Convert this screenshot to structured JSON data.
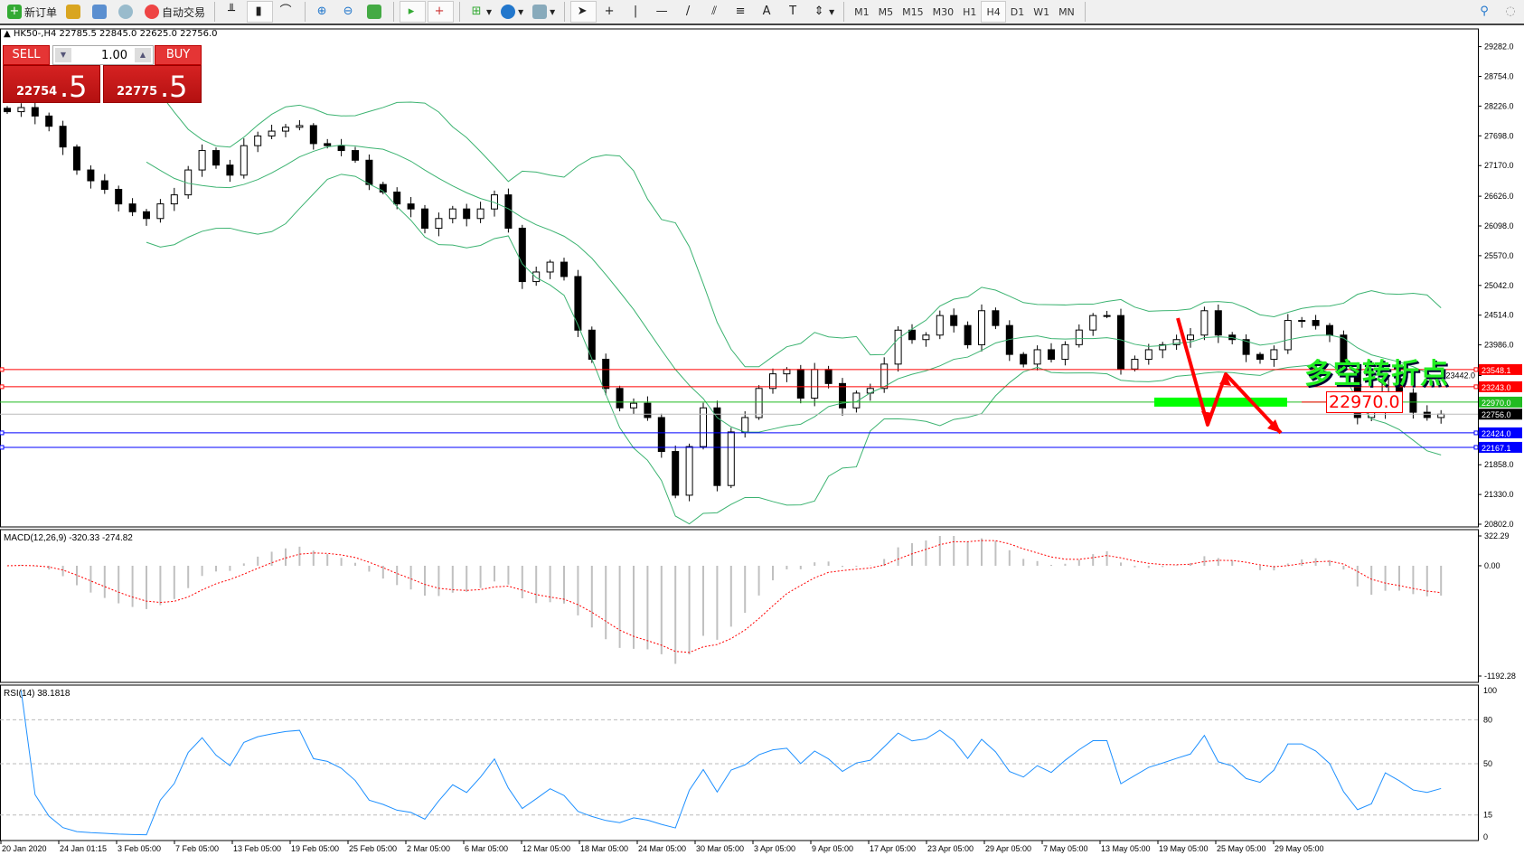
{
  "toolbar": {
    "new_order": "新订单",
    "auto_trading": "自动交易",
    "timeframes": [
      "M1",
      "M5",
      "M15",
      "M30",
      "H1",
      "H4",
      "D1",
      "W1",
      "MN"
    ],
    "active_timeframe": "H4",
    "icons": [
      "new-order-icon",
      "market-watch-icon",
      "navigator-icon",
      "signals-icon",
      "auto-trading-icon",
      "bar-chart-icon",
      "candlestick-icon",
      "line-chart-icon",
      "zoom-in-icon",
      "zoom-out-icon",
      "tile-windows-icon",
      "chart-shift-icon",
      "autoscroll-icon",
      "indicators-icon",
      "periods-icon",
      "templates-icon",
      "cursor-icon",
      "crosshair-icon",
      "vertical-line-icon",
      "horizontal-line-icon",
      "trendline-icon",
      "equidistant-channel-icon",
      "fibonacci-icon",
      "text-icon",
      "text-label-icon",
      "arrows-icon",
      "search-icon",
      "chat-icon"
    ]
  },
  "chart": {
    "header": "HK50-,H4  22785.5 22845.0 22625.0 22756.0",
    "sell_label": "SELL",
    "buy_label": "BUY",
    "lot": "1.00",
    "sell_price_small": "22754",
    "sell_price_big": ".5",
    "buy_price_small": "22775",
    "buy_price_big": ".5",
    "annotation_text": "多空转折点",
    "annotation_price": "22970.0"
  },
  "colors": {
    "bull": "#ffffff",
    "bear": "#000000",
    "bands": "#3cb371",
    "resistance": "#ff0000",
    "support": "#0000ff",
    "pivot": "#00ff00",
    "rsi": "#1e90ff",
    "signal": "#ff0000",
    "histogram": "#c0c0c0",
    "arrow": "#ff0000"
  },
  "chart_data": [
    {
      "type": "candlestick",
      "title": "HK50-,H4",
      "ylim": [
        20802.0,
        29282.0
      ],
      "y_ticks": [
        "29282.0",
        "28754.0",
        "28226.0",
        "27698.0",
        "27170.0",
        "26626.0",
        "26098.0",
        "25570.0",
        "25042.0",
        "24514.0",
        "23986.0",
        "23442.0",
        "21858.0",
        "21330.0",
        "20802.0"
      ],
      "x_ticks": [
        "20 Jan 2020",
        "24 Jan 01:15",
        "3 Feb 05:00",
        "7 Feb 05:00",
        "13 Feb 05:00",
        "19 Feb 05:00",
        "25 Feb 05:00",
        "2 Mar 05:00",
        "6 Mar 05:00",
        "12 Mar 05:00",
        "18 Mar 05:00",
        "24 Mar 05:00",
        "30 Mar 05:00",
        "3 Apr 05:00",
        "9 Apr 05:00",
        "17 Apr 05:00",
        "23 Apr 05:00",
        "29 Apr 05:00",
        "7 May 05:00",
        "13 May 05:00",
        "19 May 05:00",
        "25 May 05:00",
        "29 May 05:00"
      ],
      "close": [
        28127,
        28200,
        28050,
        27868,
        27500,
        27092,
        26900,
        26748,
        26489,
        26350,
        26230,
        26490,
        26650,
        27092,
        27437,
        27179,
        27000,
        27524,
        27696,
        27782,
        27850,
        27880,
        27560,
        27524,
        27437,
        27265,
        26834,
        26700,
        26489,
        26400,
        26058,
        26230,
        26400,
        26230,
        26400,
        26650,
        26058,
        25110,
        25280,
        25455,
        25200,
        24248,
        23731,
        23213,
        22868,
        22950,
        22696,
        22093,
        21317,
        22180,
        22868,
        21489,
        22440,
        22696,
        23213,
        23472,
        23550,
        23041,
        23550,
        23300,
        22868,
        23130,
        23213,
        23645,
        24248,
        24080,
        24160,
        24507,
        24330,
        23989,
        24593,
        24330,
        23817,
        23645,
        23900,
        23730,
        23990,
        24250,
        24507,
        24507,
        23558,
        23730,
        23900,
        23990,
        24080,
        24160,
        24593,
        24160,
        24080,
        23817,
        23730,
        23900,
        24420,
        24420,
        24330,
        24160,
        23558,
        22696,
        22790,
        23386,
        23130,
        22790,
        22696,
        22756
      ],
      "hlines": [
        {
          "price": "23548.1",
          "color": "#ff0000"
        },
        {
          "price": "23243.0",
          "color": "#ff0000"
        },
        {
          "price": "22970.0",
          "color": "#22bb22"
        },
        {
          "price": "22756.0",
          "color": "#000000",
          "current": true
        },
        {
          "price": "22424.0",
          "color": "#0000ff"
        },
        {
          "price": "22167.1",
          "color": "#0000ff"
        }
      ]
    },
    {
      "type": "bar",
      "title": "MACD(12,26,9) -320.33 -274.82",
      "ylim": [
        -1192.28,
        322.29
      ],
      "y_ticks": [
        "322.29",
        "0.00",
        "-1192.28"
      ]
    },
    {
      "type": "line",
      "title": "RSI(14) 38.1818",
      "ylim": [
        0,
        100
      ],
      "levels": [
        80,
        50,
        15
      ],
      "y_ticks": [
        "100",
        "80",
        "50",
        "15",
        "0"
      ]
    }
  ]
}
